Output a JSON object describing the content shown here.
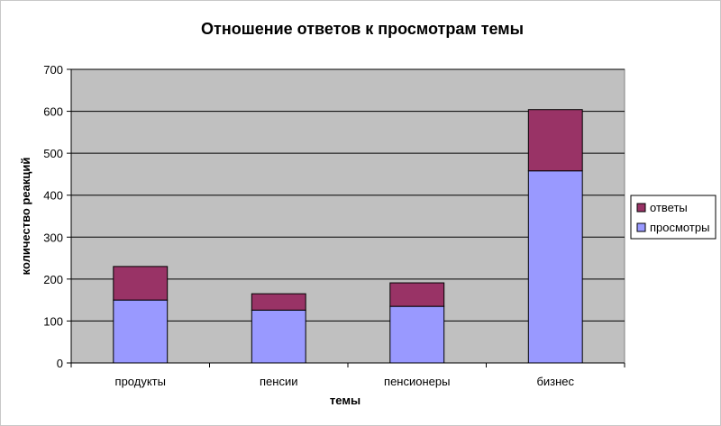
{
  "chart_data": {
    "type": "bar",
    "stacked": true,
    "title": "Отношение ответов к просмотрам темы",
    "xlabel": "темы",
    "ylabel": "количество реакций",
    "categories": [
      "продукты",
      "пенсии",
      "пенсионеры",
      "бизнес"
    ],
    "series": [
      {
        "name": "просмотры",
        "values": [
          150,
          126,
          135,
          458
        ],
        "color": "#9999ff"
      },
      {
        "name": "ответы",
        "values": [
          80,
          39,
          56,
          146
        ],
        "color": "#993366"
      }
    ],
    "legend_order": [
      "ответы",
      "просмотры"
    ],
    "ylim": [
      0,
      700
    ],
    "yticks": [
      0,
      100,
      200,
      300,
      400,
      500,
      600,
      700
    ],
    "grid": true,
    "legend": "right",
    "colors": {
      "plot_background": "#c0c0c0",
      "grid": "#000000"
    }
  }
}
